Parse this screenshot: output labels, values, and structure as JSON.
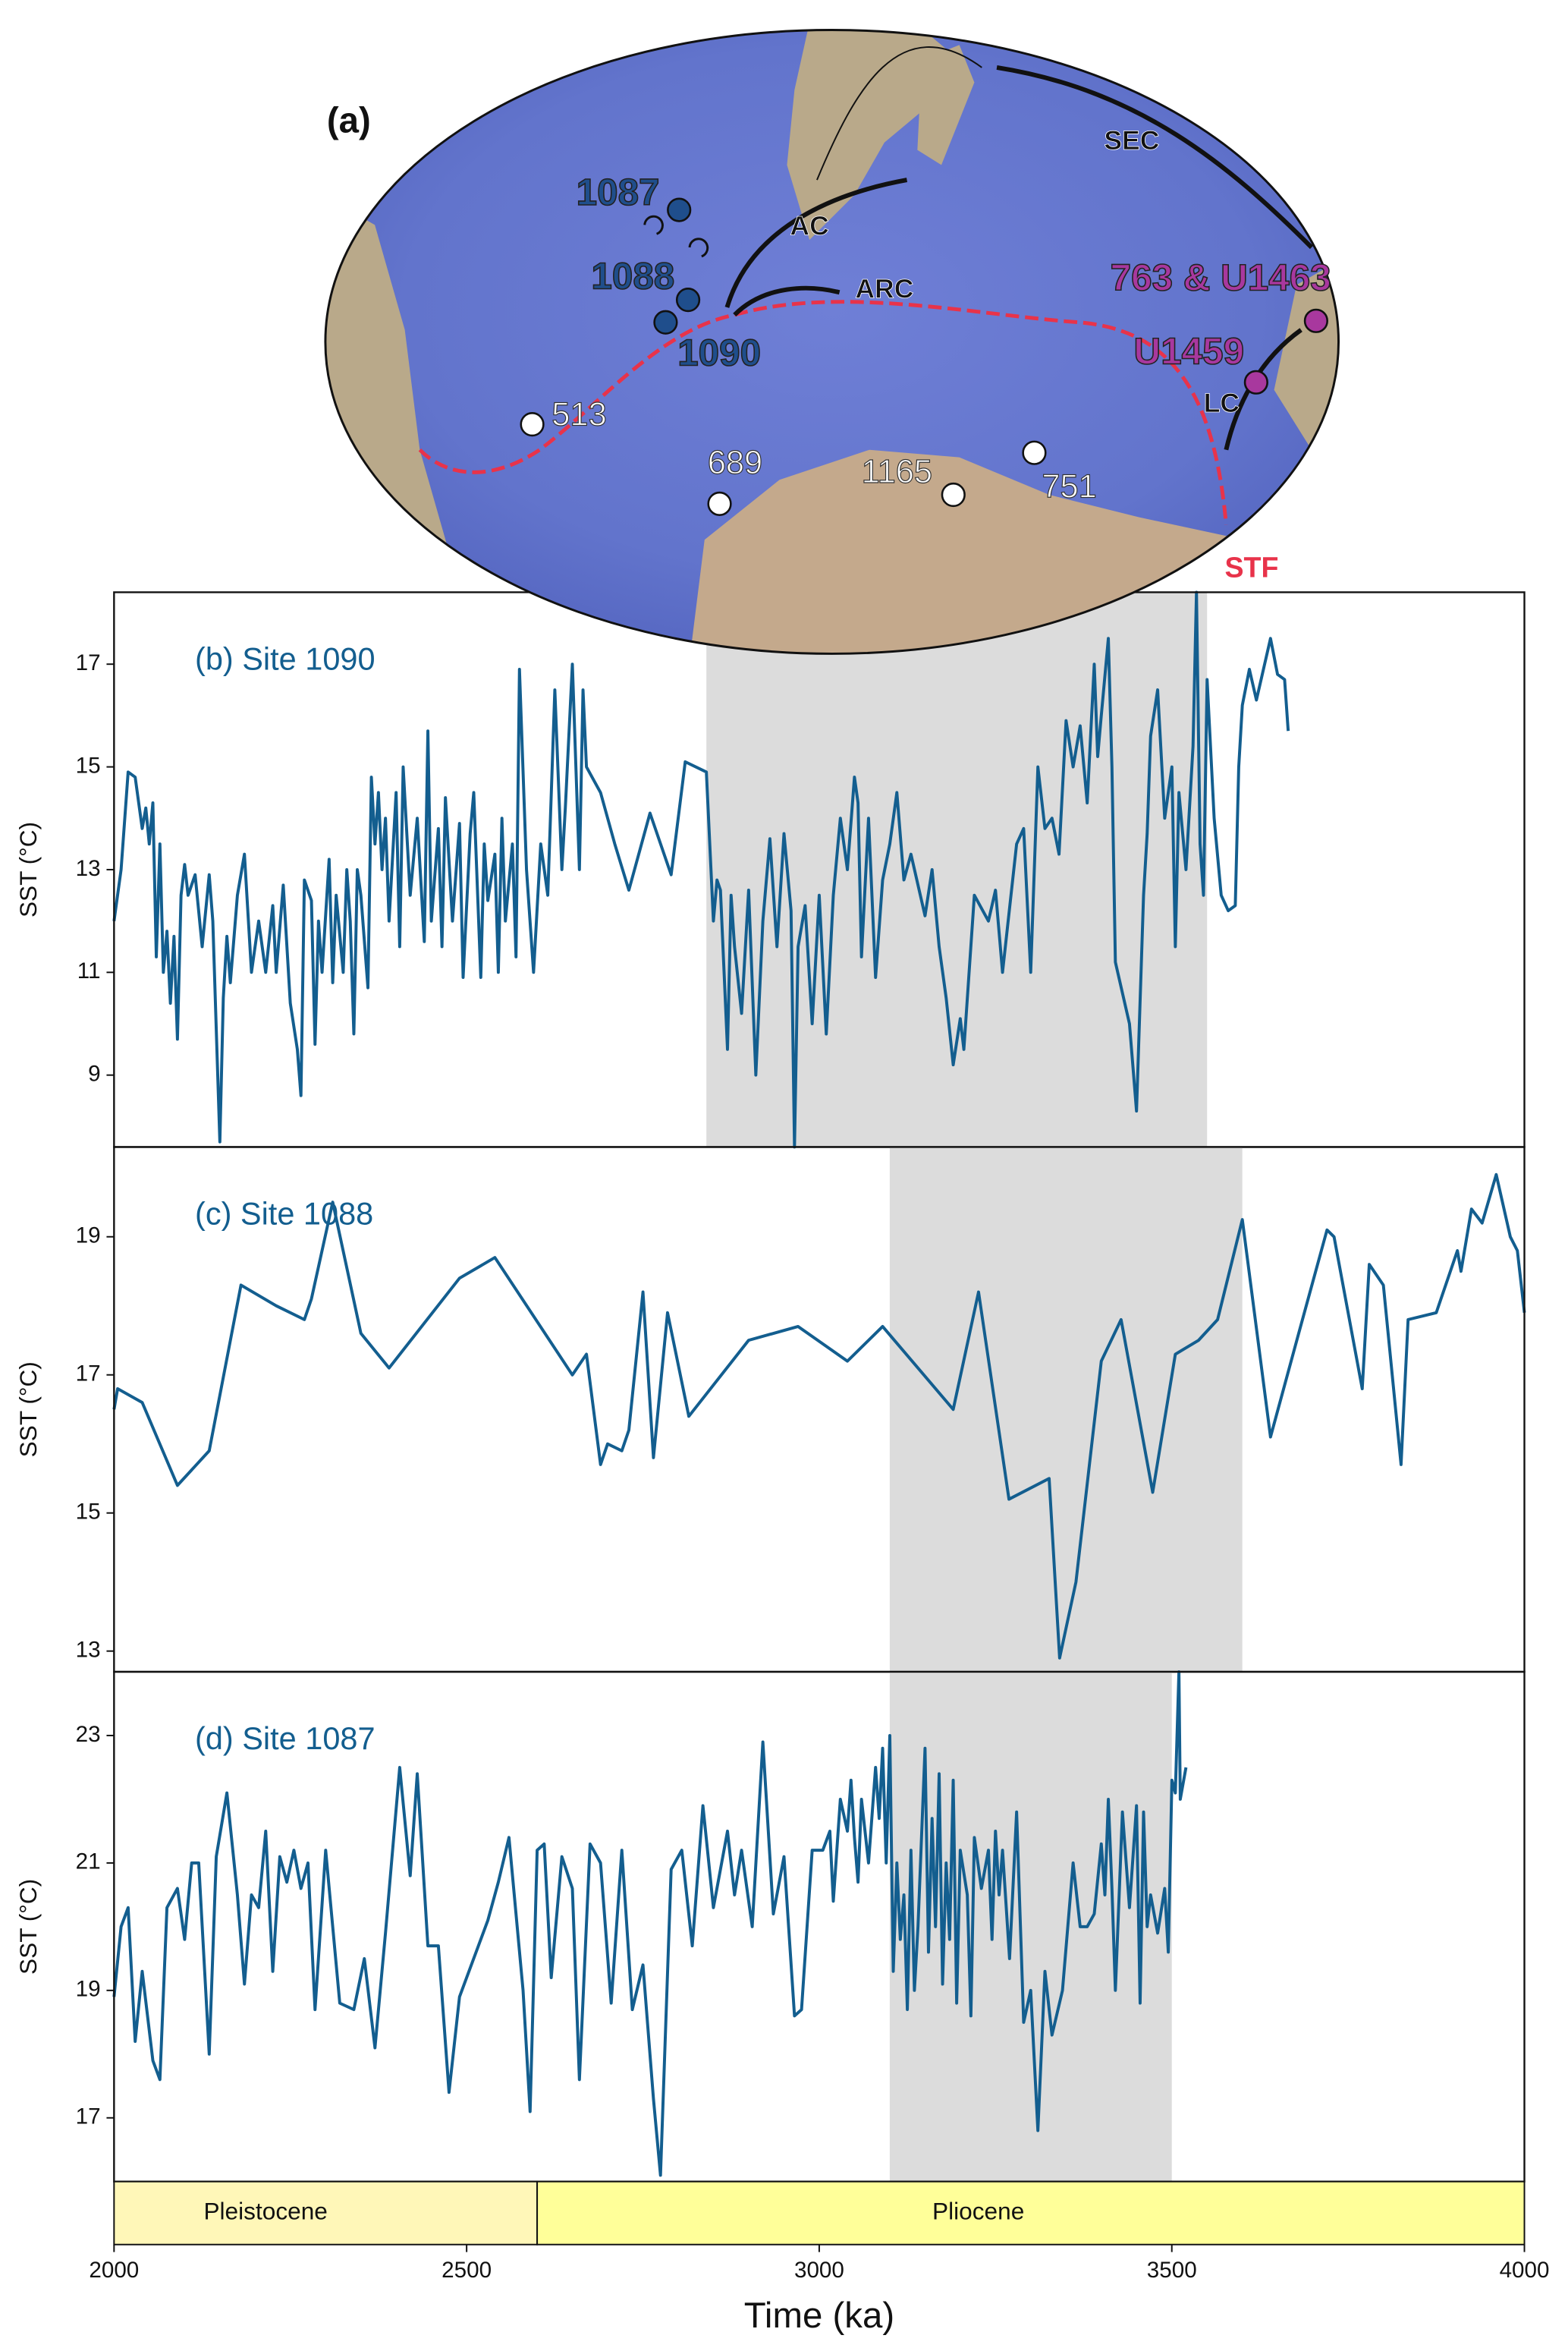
{
  "map": {
    "panel_label": "(a)",
    "sites": [
      {
        "label": "1087",
        "color": "#1f4e8c"
      },
      {
        "label": "1088",
        "color": "#1f4e8c"
      },
      {
        "label": "1090",
        "color": "#1f4e8c"
      },
      {
        "label": "763 & U1463",
        "color": "#a8389e"
      },
      {
        "label": "U1459",
        "color": "#a8389e"
      },
      {
        "label": "513",
        "color": "#ffffff"
      },
      {
        "label": "689",
        "color": "#ffffff"
      },
      {
        "label": "1165",
        "color": "#ffffff"
      },
      {
        "label": "751",
        "color": "#ffffff"
      }
    ],
    "currents": [
      "SEC",
      "AC",
      "ARC",
      "LC"
    ],
    "front": {
      "label": "STF",
      "color": "#e8334a"
    }
  },
  "chart_data": [
    {
      "type": "line",
      "label": "(b) Site 1090",
      "ylabel": "SST (°C)",
      "color": "#135e8f",
      "xlim": [
        2000,
        4000
      ],
      "ylim": [
        7.6,
        18.4
      ],
      "yticks": [
        9,
        11,
        13,
        15,
        17
      ],
      "shade": [
        2840,
        3550
      ],
      "x": [
        2000,
        2010,
        2020,
        2030,
        2040,
        2045,
        2050,
        2055,
        2060,
        2065,
        2070,
        2075,
        2080,
        2085,
        2090,
        2095,
        2100,
        2105,
        2115,
        2125,
        2135,
        2140,
        2150,
        2155,
        2160,
        2165,
        2175,
        2185,
        2195,
        2205,
        2215,
        2225,
        2230,
        2240,
        2250,
        2260,
        2265,
        2270,
        2280,
        2285,
        2290,
        2295,
        2305,
        2310,
        2315,
        2325,
        2330,
        2335,
        2340,
        2345,
        2350,
        2360,
        2365,
        2370,
        2375,
        2380,
        2385,
        2390,
        2400,
        2405,
        2410,
        2420,
        2430,
        2440,
        2445,
        2450,
        2460,
        2465,
        2470,
        2480,
        2490,
        2495,
        2505,
        2510,
        2520,
        2525,
        2530,
        2540,
        2545,
        2550,
        2555,
        2565,
        2570,
        2575,
        2585,
        2595,
        2605,
        2615,
        2625,
        2635,
        2640,
        2650,
        2660,
        2665,
        2670,
        2690,
        2710,
        2730,
        2760,
        2790,
        2810,
        2840,
        2850,
        2855,
        2860,
        2870,
        2875,
        2880,
        2890,
        2900,
        2910,
        2920,
        2930,
        2940,
        2950,
        2960,
        2965,
        2970,
        2980,
        2990,
        3000,
        3010,
        3020,
        3030,
        3040,
        3050,
        3055,
        3060,
        3070,
        3080,
        3090,
        3100,
        3110,
        3120,
        3130,
        3150,
        3160,
        3170,
        3180,
        3190,
        3200,
        3205,
        3220,
        3240,
        3250,
        3260,
        3280,
        3290,
        3300,
        3310,
        3320,
        3330,
        3340,
        3350,
        3360,
        3370,
        3380,
        3390,
        3395,
        3400,
        3410,
        3415,
        3420,
        3440,
        3450,
        3460,
        3465,
        3470,
        3480,
        3490,
        3500,
        3505,
        3510,
        3520,
        3530,
        3535,
        3540,
        3545,
        3550,
        3560,
        3570,
        3580,
        3590,
        3595,
        3600,
        3610,
        3620,
        3640,
        3650,
        3660,
        3665
      ],
      "values": [
        12.0,
        13.0,
        14.9,
        14.8,
        13.8,
        14.2,
        13.5,
        14.3,
        11.3,
        13.5,
        11.0,
        11.8,
        10.4,
        11.7,
        9.7,
        12.5,
        13.1,
        12.5,
        12.9,
        11.5,
        12.9,
        12.0,
        7.7,
        10.5,
        11.7,
        10.8,
        12.5,
        13.3,
        11.0,
        12.0,
        11.0,
        12.3,
        11.0,
        12.7,
        10.4,
        9.5,
        8.6,
        12.8,
        12.4,
        9.6,
        12.0,
        11.0,
        13.2,
        10.8,
        12.5,
        11.0,
        13.0,
        12.0,
        9.8,
        13.0,
        12.5,
        10.7,
        14.8,
        13.5,
        14.5,
        13.0,
        14.0,
        12.0,
        14.5,
        11.5,
        15.0,
        12.5,
        14.0,
        11.6,
        15.7,
        12.0,
        13.8,
        11.5,
        14.4,
        12.0,
        13.9,
        10.9,
        13.7,
        14.5,
        10.9,
        13.5,
        12.4,
        13.3,
        11.0,
        14.0,
        12.0,
        13.5,
        11.3,
        16.9,
        13.0,
        11.0,
        13.5,
        12.5,
        16.5,
        13.0,
        14.2,
        17.0,
        13.0,
        16.5,
        15.0,
        14.5,
        13.5,
        12.6,
        14.1,
        12.9,
        15.1,
        14.9,
        12.0,
        12.8,
        12.6,
        9.5,
        12.5,
        11.5,
        10.2,
        12.6,
        9.0,
        12.0,
        13.6,
        11.5,
        13.7,
        12.2,
        7.6,
        11.5,
        12.3,
        10.0,
        12.5,
        9.8,
        12.5,
        14.0,
        13.0,
        14.8,
        14.3,
        11.3,
        14.0,
        10.9,
        12.8,
        13.5,
        14.5,
        12.8,
        13.3,
        12.1,
        13.0,
        11.5,
        10.5,
        9.2,
        10.1,
        9.5,
        12.5,
        12.0,
        12.6,
        11.0,
        13.5,
        13.8,
        11.0,
        15.0,
        13.8,
        14.0,
        13.3,
        15.9,
        15.0,
        15.8,
        14.3,
        17.0,
        15.2,
        16.0,
        17.5,
        15.0,
        11.2,
        10.0,
        8.3,
        12.5,
        13.7,
        15.6,
        16.5,
        14.0,
        15.0,
        11.5,
        14.5,
        13.0,
        15.4,
        18.4,
        13.5,
        12.5,
        16.7,
        14.0,
        12.5,
        12.2,
        12.3,
        15.0,
        16.2,
        16.9,
        16.3,
        17.5,
        16.8,
        16.7,
        15.7
      ]
    },
    {
      "type": "line",
      "label": "(c) Site 1088",
      "ylabel": "SST (°C)",
      "color": "#135e8f",
      "xlim": [
        2000,
        4000
      ],
      "ylim": [
        12.7,
        20.3
      ],
      "yticks": [
        13,
        15,
        17,
        19
      ],
      "shade": [
        3100,
        3600
      ],
      "x": [
        2000,
        2005,
        2040,
        2090,
        2135,
        2180,
        2230,
        2270,
        2280,
        2310,
        2350,
        2390,
        2490,
        2540,
        2650,
        2670,
        2690,
        2700,
        2720,
        2730,
        2750,
        2765,
        2785,
        2815,
        2900,
        2970,
        3040,
        3090,
        3190,
        3226,
        3269,
        3326,
        3341,
        3364,
        3400,
        3428,
        3473,
        3505,
        3538,
        3565,
        3600,
        3640,
        3680,
        3720,
        3730,
        3770,
        3780,
        3800,
        3825,
        3835,
        3875,
        3905,
        3910,
        3925,
        3940,
        3960,
        3980,
        3990,
        4000
      ],
      "values": [
        16.5,
        16.8,
        16.6,
        15.4,
        15.9,
        18.3,
        18.0,
        17.8,
        18.1,
        19.5,
        17.6,
        17.1,
        18.4,
        18.7,
        17.0,
        17.3,
        15.7,
        16.0,
        15.9,
        16.2,
        18.2,
        15.8,
        17.9,
        16.4,
        17.5,
        17.7,
        17.2,
        17.7,
        16.5,
        18.2,
        15.2,
        15.5,
        12.9,
        14.0,
        17.2,
        17.8,
        15.3,
        17.3,
        17.5,
        17.8,
        19.25,
        16.1,
        17.6,
        19.1,
        19.0,
        16.8,
        18.6,
        18.3,
        15.7,
        17.8,
        17.9,
        18.8,
        18.5,
        19.4,
        19.2,
        19.9,
        19.0,
        18.8,
        17.9
      ]
    },
    {
      "type": "line",
      "label": "(d) Site 1087",
      "ylabel": "SST (°C)",
      "xlabel": "Time (ka)",
      "color": "#135e8f",
      "xlim": [
        2000,
        4000
      ],
      "xticks": [
        2000,
        2500,
        3000,
        3500,
        4000
      ],
      "ylim": [
        16.0,
        24.0
      ],
      "yticks": [
        17,
        19,
        21,
        23
      ],
      "shade": [
        3100,
        3500
      ],
      "epochs": [
        {
          "name": "Pleistocene",
          "start": 2000,
          "end": 2600,
          "color": "#fff7b8"
        },
        {
          "name": "Pliocene",
          "start": 2600,
          "end": 4000,
          "color": "#ffff99"
        }
      ],
      "x": [
        2000,
        2010,
        2020,
        2030,
        2040,
        2055,
        2065,
        2075,
        2090,
        2100,
        2110,
        2120,
        2135,
        2145,
        2160,
        2175,
        2185,
        2195,
        2205,
        2215,
        2225,
        2235,
        2245,
        2255,
        2265,
        2275,
        2285,
        2300,
        2320,
        2340,
        2355,
        2370,
        2385,
        2405,
        2420,
        2430,
        2445,
        2460,
        2475,
        2490,
        2530,
        2545,
        2560,
        2580,
        2590,
        2600,
        2610,
        2620,
        2635,
        2650,
        2660,
        2675,
        2690,
        2705,
        2720,
        2735,
        2750,
        2765,
        2775,
        2790,
        2805,
        2820,
        2835,
        2850,
        2870,
        2880,
        2890,
        2905,
        2920,
        2935,
        2950,
        2965,
        2975,
        2990,
        3005,
        3015,
        3020,
        3030,
        3040,
        3045,
        3050,
        3055,
        3060,
        3070,
        3080,
        3085,
        3090,
        3095,
        3100,
        3105,
        3110,
        3115,
        3120,
        3125,
        3130,
        3135,
        3140,
        3150,
        3155,
        3160,
        3165,
        3170,
        3175,
        3180,
        3185,
        3190,
        3195,
        3200,
        3210,
        3215,
        3220,
        3230,
        3240,
        3245,
        3250,
        3255,
        3260,
        3270,
        3280,
        3290,
        3300,
        3310,
        3320,
        3330,
        3345,
        3360,
        3370,
        3380,
        3390,
        3400,
        3405,
        3410,
        3415,
        3420,
        3430,
        3440,
        3450,
        3455,
        3460,
        3465,
        3470,
        3480,
        3490,
        3495,
        3500,
        3505,
        3510,
        3512,
        3520
      ],
      "values": [
        18.9,
        20.0,
        20.3,
        18.2,
        19.3,
        17.9,
        17.6,
        20.3,
        20.6,
        19.8,
        21.0,
        21.0,
        18.0,
        21.1,
        22.1,
        20.5,
        19.1,
        20.5,
        20.3,
        21.5,
        19.3,
        21.1,
        20.7,
        21.2,
        20.6,
        21.0,
        18.7,
        21.2,
        18.8,
        18.7,
        19.5,
        18.1,
        19.9,
        22.5,
        20.8,
        22.4,
        19.7,
        19.7,
        17.4,
        18.9,
        20.1,
        20.7,
        21.4,
        19.0,
        17.1,
        21.2,
        21.3,
        19.2,
        21.1,
        20.6,
        17.6,
        21.3,
        21.0,
        18.8,
        21.2,
        18.7,
        19.4,
        17.3,
        16.1,
        20.9,
        21.2,
        19.7,
        21.9,
        20.3,
        21.5,
        20.5,
        21.2,
        20.0,
        22.9,
        20.2,
        21.1,
        18.6,
        18.7,
        21.2,
        21.2,
        21.5,
        20.4,
        22.0,
        21.5,
        22.3,
        21.4,
        20.7,
        22.0,
        21.0,
        22.5,
        21.7,
        22.8,
        21.0,
        23.0,
        19.3,
        21.0,
        19.8,
        20.5,
        18.7,
        21.2,
        19.0,
        20.0,
        22.8,
        19.6,
        21.7,
        20.0,
        22.4,
        19.1,
        21.0,
        19.8,
        22.3,
        18.8,
        21.2,
        20.5,
        18.6,
        21.4,
        20.6,
        21.2,
        19.8,
        21.5,
        20.5,
        21.2,
        19.5,
        21.8,
        18.5,
        19.0,
        16.8,
        19.3,
        18.3,
        19.0,
        21.0,
        20.0,
        20.0,
        20.2,
        21.3,
        20.5,
        22.0,
        20.6,
        19.0,
        21.8,
        20.3,
        21.9,
        18.8,
        21.8,
        20.0,
        20.5,
        19.9,
        20.6,
        19.6,
        22.3,
        22.1,
        24.0,
        22.0,
        22.5
      ]
    }
  ]
}
